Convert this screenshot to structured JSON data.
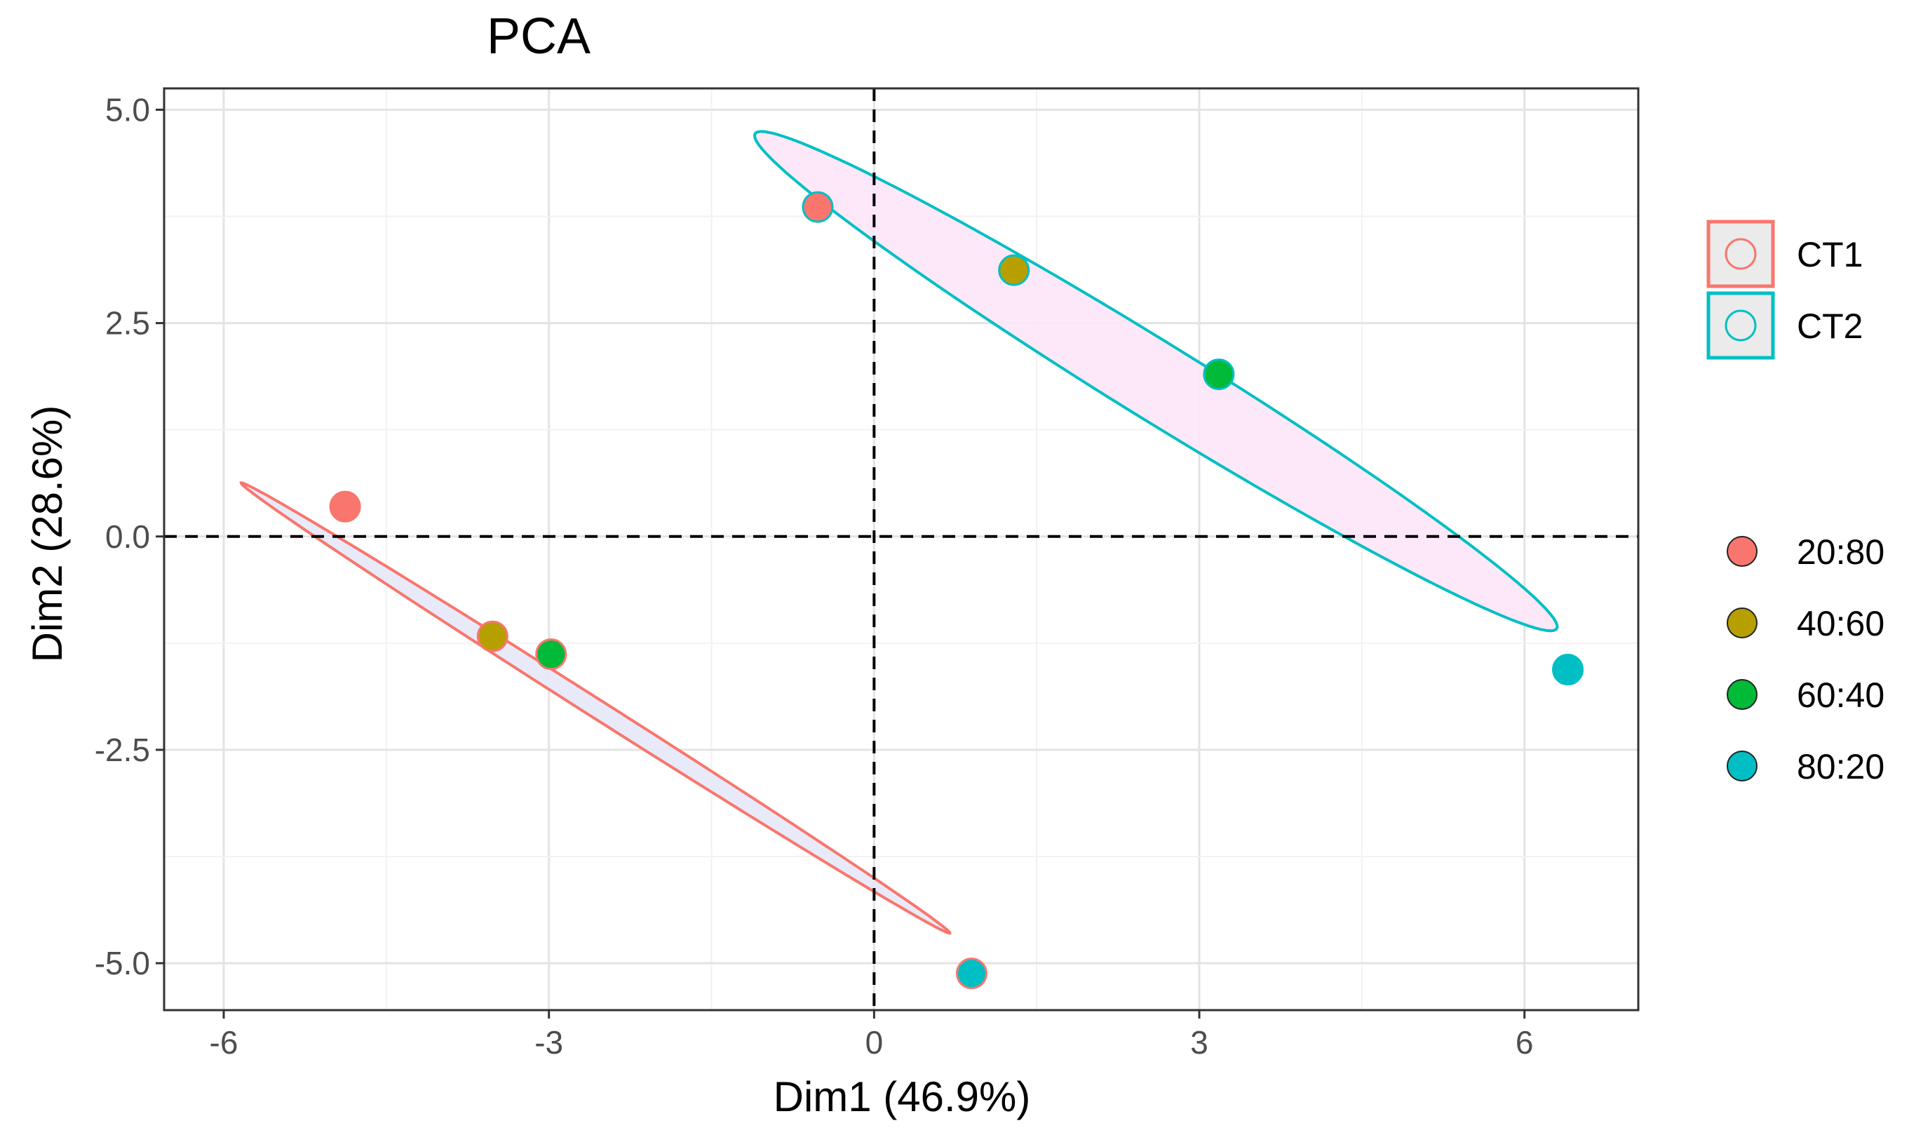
{
  "chart_data": {
    "type": "scatter",
    "title": "PCA",
    "xlabel": "Dim1 (46.9%)",
    "ylabel": "Dim2 (28.6%)",
    "xlim": [
      -6.55,
      7.05
    ],
    "ylim": [
      -5.55,
      5.25
    ],
    "x_ticks": [
      -6,
      -3,
      0,
      3,
      6
    ],
    "x_tick_labels": [
      "-6",
      "-3",
      "0",
      "3",
      "6"
    ],
    "y_ticks": [
      -5,
      -2.5,
      0,
      2.5,
      5
    ],
    "y_tick_labels": [
      "-5.0",
      "-2.5",
      "0.0",
      "2.5",
      "5.0"
    ],
    "grid": true,
    "reference_lines": {
      "x": 0,
      "y": 0,
      "style": "dashed"
    },
    "groups_legend": {
      "position": "right",
      "entries": [
        {
          "label": "CT1",
          "color": "#F8766D"
        },
        {
          "label": "CT2",
          "color": "#00BFC4"
        }
      ]
    },
    "ratio_legend": {
      "position": "right",
      "entries": [
        {
          "label": "20:80",
          "color": "#F8766D"
        },
        {
          "label": "40:60",
          "color": "#B79F00"
        },
        {
          "label": "60:40",
          "color": "#00BA38"
        },
        {
          "label": "80:20",
          "color": "#00BFC4"
        }
      ]
    },
    "ellipses": [
      {
        "group": "CT1",
        "center": [
          -2.57,
          -2.01
        ],
        "semi_major": 4.2,
        "semi_minor": 0.1,
        "angle_deg": -38.9,
        "stroke": "#F8766D",
        "fill": "#E6E8F8"
      },
      {
        "group": "CT2",
        "center": [
          2.6,
          1.82
        ],
        "semi_major": 4.7,
        "semi_minor": 0.42,
        "angle_deg": -38.2,
        "stroke": "#00BFC4",
        "fill": "#FCE6F8"
      }
    ],
    "points": [
      {
        "x": -4.88,
        "y": 0.35,
        "ratio": "20:80",
        "group": "CT1",
        "fill": "#F8766D",
        "stroke": "#F8766D"
      },
      {
        "x": -3.52,
        "y": -1.17,
        "ratio": "40:60",
        "group": "CT1",
        "fill": "#B79F00",
        "stroke": "#F8766D"
      },
      {
        "x": -2.98,
        "y": -1.38,
        "ratio": "60:40",
        "group": "CT1",
        "fill": "#00BA38",
        "stroke": "#F8766D"
      },
      {
        "x": 0.9,
        "y": -5.12,
        "ratio": "80:20",
        "group": "CT1",
        "fill": "#00BFC4",
        "stroke": "#F8766D"
      },
      {
        "x": -0.52,
        "y": 3.86,
        "ratio": "20:80",
        "group": "CT2",
        "fill": "#F8766D",
        "stroke": "#00BFC4"
      },
      {
        "x": 1.29,
        "y": 3.12,
        "ratio": "40:60",
        "group": "CT2",
        "fill": "#B79F00",
        "stroke": "#00BFC4"
      },
      {
        "x": 3.18,
        "y": 1.9,
        "ratio": "60:40",
        "group": "CT2",
        "fill": "#00BA38",
        "stroke": "#00BFC4"
      },
      {
        "x": 6.4,
        "y": -1.56,
        "ratio": "80:20",
        "group": "CT2",
        "fill": "#00BFC4",
        "stroke": "#00BFC4"
      }
    ]
  }
}
